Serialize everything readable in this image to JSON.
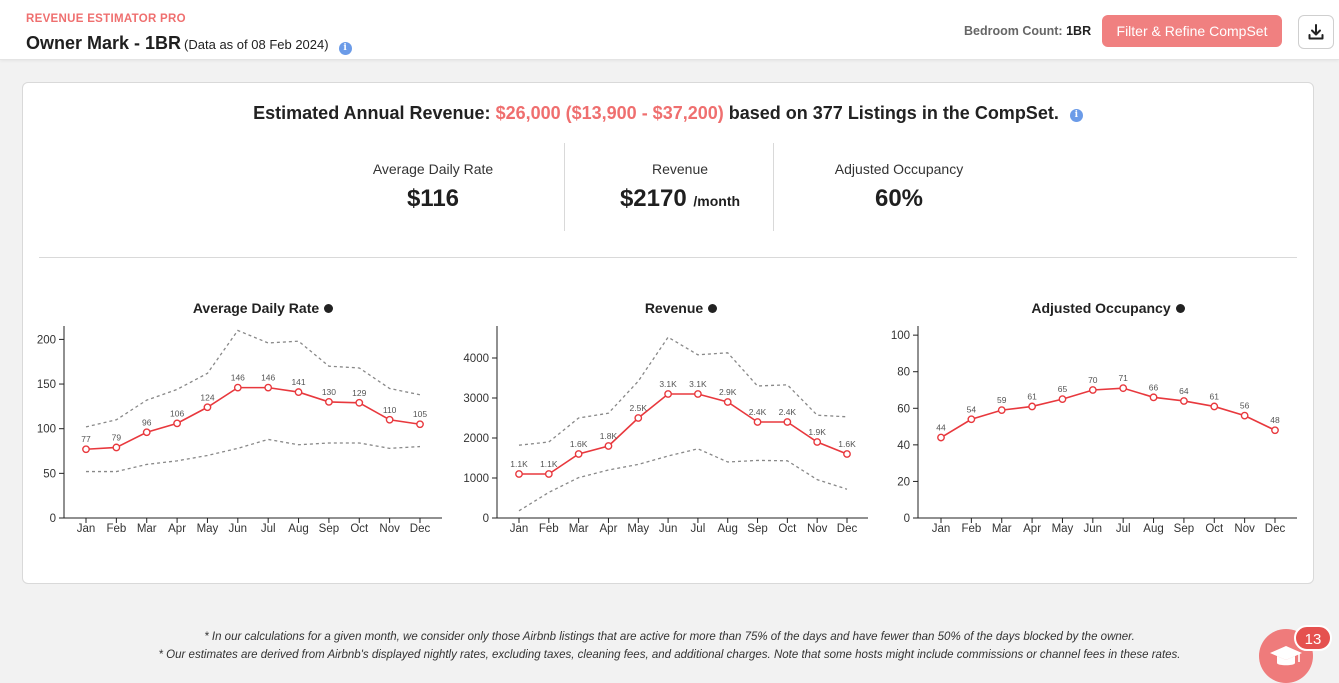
{
  "header": {
    "app_name": "REVENUE ESTIMATOR PRO",
    "title": "Owner Mark - 1BR",
    "data_date": "(Data as of 08 Feb 2024)",
    "bedroom_label": "Bedroom Count:",
    "bedroom_value": "1BR",
    "filter_button": "Filter & Refine CompSet"
  },
  "summary": {
    "prefix": "Estimated Annual Revenue:",
    "highlight": "$26,000 ($13,900 - $37,200)",
    "suffix": "based on 377 Listings in the CompSet."
  },
  "kpis": [
    {
      "label": "Average Daily Rate",
      "value": "$116",
      "unit": ""
    },
    {
      "label": "Revenue",
      "value": "$2170",
      "unit": "/month"
    },
    {
      "label": "Adjusted Occupancy",
      "value": "60%",
      "unit": ""
    }
  ],
  "colors": {
    "accent": "#ef6f6f",
    "line": "#e8383d",
    "band": "#888888",
    "info": "#6b9be8"
  },
  "chart_data": [
    {
      "type": "line",
      "title": "Average Daily Rate",
      "categories": [
        "Jan",
        "Feb",
        "Mar",
        "Apr",
        "May",
        "Jun",
        "Jul",
        "Aug",
        "Sep",
        "Oct",
        "Nov",
        "Dec"
      ],
      "series": [
        {
          "values": [
            77,
            79,
            96,
            106,
            124,
            146,
            146,
            141,
            130,
            129,
            110,
            105
          ]
        },
        {
          "values": [
            102,
            110,
            132,
            144,
            162,
            210,
            196,
            198,
            170,
            168,
            145,
            138
          ],
          "style": "dashed"
        },
        {
          "values": [
            52,
            52,
            60,
            64,
            70,
            78,
            88,
            82,
            84,
            84,
            78,
            80
          ],
          "style": "dashed"
        }
      ],
      "data_labels": [
        "77",
        "79",
        "96",
        "106",
        "124",
        "146",
        "146",
        "141",
        "130",
        "129",
        "110",
        "105"
      ],
      "yticks": [
        0,
        50,
        100,
        150,
        200
      ],
      "ylim": [
        0,
        215
      ],
      "grid": false
    },
    {
      "type": "line",
      "title": "Revenue",
      "categories": [
        "Jan",
        "Feb",
        "Mar",
        "Apr",
        "May",
        "Jun",
        "Jul",
        "Aug",
        "Sep",
        "Oct",
        "Nov",
        "Dec"
      ],
      "series": [
        {
          "values": [
            1100,
            1100,
            1600,
            1800,
            2500,
            3100,
            3100,
            2900,
            2400,
            2400,
            1900,
            1600
          ]
        },
        {
          "values": [
            1820,
            1900,
            2500,
            2620,
            3420,
            4520,
            4080,
            4130,
            3300,
            3330,
            2570,
            2530
          ],
          "style": "dashed"
        },
        {
          "values": [
            180,
            640,
            1010,
            1200,
            1340,
            1550,
            1730,
            1400,
            1440,
            1430,
            960,
            720
          ],
          "style": "dashed"
        }
      ],
      "data_labels": [
        "1.1K",
        "1.1K",
        "1.6K",
        "1.8K",
        "2.5K",
        "3.1K",
        "3.1K",
        "2.9K",
        "2.4K",
        "2.4K",
        "1.9K",
        "1.6K"
      ],
      "yticks": [
        0,
        1000,
        2000,
        3000,
        4000
      ],
      "ylim": [
        0,
        4800
      ],
      "grid": false
    },
    {
      "type": "line",
      "title": "Adjusted Occupancy",
      "categories": [
        "Jan",
        "Feb",
        "Mar",
        "Apr",
        "May",
        "Jun",
        "Jul",
        "Aug",
        "Sep",
        "Oct",
        "Nov",
        "Dec"
      ],
      "series": [
        {
          "values": [
            44,
            54,
            59,
            61,
            65,
            70,
            71,
            66,
            64,
            61,
            56,
            48
          ]
        }
      ],
      "data_labels": [
        "44",
        "54",
        "59",
        "61",
        "65",
        "70",
        "71",
        "66",
        "64",
        "61",
        "56",
        "48"
      ],
      "yticks": [
        0,
        20,
        40,
        60,
        80,
        100
      ],
      "ylim": [
        0,
        105
      ],
      "grid": false
    }
  ],
  "footnotes": [
    "* In our calculations for a given month, we consider only those Airbnb listings that are active for more than 75% of the days and have fewer than 50% of the days blocked by the owner.",
    "* Our estimates are derived from Airbnb's displayed nightly rates, excluding taxes, cleaning fees, and additional charges. Note that some hosts might include commissions or channel fees in these rates."
  ],
  "help": {
    "badge_count": "13"
  }
}
